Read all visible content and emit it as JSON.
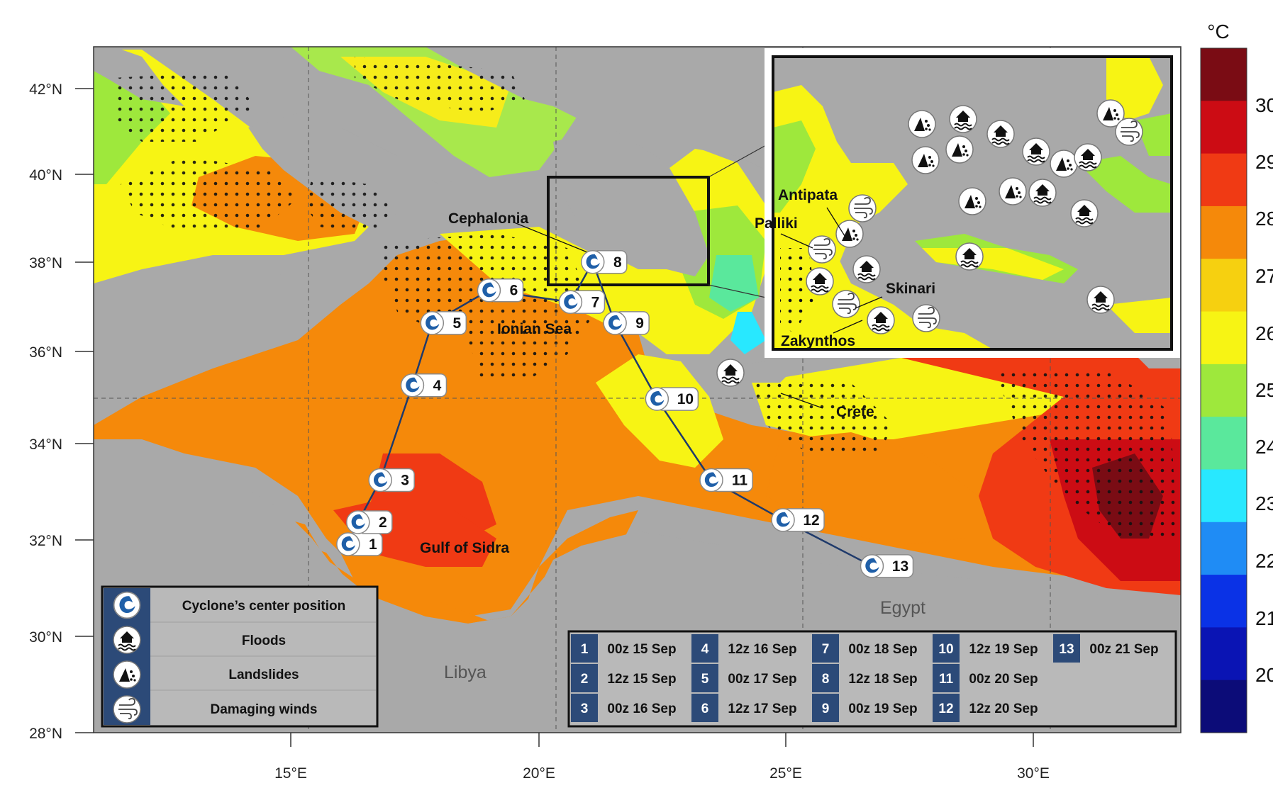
{
  "map": {
    "lat_labels": [
      "42°N",
      "40°N",
      "38°N",
      "36°N",
      "34°N",
      "32°N",
      "30°N",
      "28°N"
    ],
    "lon_labels": [
      "15°E",
      "20°E",
      "25°E",
      "30°E"
    ],
    "places": {
      "cephalonia": "Cephalonia",
      "ionian_sea": "Ionian Sea",
      "gulf_of_sidra": "Gulf of Sidra",
      "crete": "Crete",
      "libya": "Libya",
      "egypt": "Egypt"
    },
    "inset_places": {
      "antipata": "Antipata",
      "palliki": "Palliki",
      "skinari": "Skinari",
      "zakynthos": "Zakynthos"
    },
    "track_points": [
      {
        "id": "1",
        "lon": 16.15,
        "lat": 32.4
      },
      {
        "id": "2",
        "lon": 16.35,
        "lat": 32.9
      },
      {
        "id": "3",
        "lon": 16.8,
        "lat": 33.85
      },
      {
        "id": "4",
        "lon": 17.45,
        "lat": 35.95
      },
      {
        "id": "5",
        "lon": 17.85,
        "lat": 37.3
      },
      {
        "id": "6",
        "lon": 19.0,
        "lat": 38.0
      },
      {
        "id": "7",
        "lon": 20.65,
        "lat": 37.75
      },
      {
        "id": "8",
        "lon": 21.1,
        "lat": 38.6
      },
      {
        "id": "9",
        "lon": 21.55,
        "lat": 37.3
      },
      {
        "id": "10",
        "lon": 22.4,
        "lat": 35.65
      },
      {
        "id": "11",
        "lon": 23.5,
        "lat": 33.85
      },
      {
        "id": "12",
        "lon": 24.95,
        "lat": 32.95
      },
      {
        "id": "13",
        "lon": 26.75,
        "lat": 31.9
      }
    ]
  },
  "colorbar": {
    "unit": "°C",
    "tick_labels": [
      "30",
      "29",
      "28",
      "27",
      "26",
      "25",
      "24",
      "23",
      "22",
      "21",
      "20"
    ],
    "colors": [
      "#7a0c14",
      "#cc0c14",
      "#f03a14",
      "#f5890a",
      "#f6d010",
      "#f7f414",
      "#9ee83c",
      "#5ae89c",
      "#28e8ff",
      "#1f8cf5",
      "#0a32e6",
      "#0a14b4",
      "#0c0c78"
    ]
  },
  "legend": {
    "cyclone": "Cyclone’s center position",
    "floods": "Floods",
    "landslides": "Landslides",
    "winds": "Damaging winds"
  },
  "timetable": [
    {
      "n": "1",
      "t": "00z 15 Sep"
    },
    {
      "n": "2",
      "t": "12z 15 Sep"
    },
    {
      "n": "3",
      "t": "00z 16 Sep"
    },
    {
      "n": "4",
      "t": "12z 16 Sep"
    },
    {
      "n": "5",
      "t": "00z 17 Sep"
    },
    {
      "n": "6",
      "t": "12z 17 Sep"
    },
    {
      "n": "7",
      "t": "00z 18 Sep"
    },
    {
      "n": "8",
      "t": "12z 18 Sep"
    },
    {
      "n": "9",
      "t": "00z 19 Sep"
    },
    {
      "n": "10",
      "t": "12z 19 Sep"
    },
    {
      "n": "11",
      "t": "00z 20 Sep"
    },
    {
      "n": "12",
      "t": "12z 20 Sep"
    },
    {
      "n": "13",
      "t": "00z 21 Sep"
    }
  ]
}
